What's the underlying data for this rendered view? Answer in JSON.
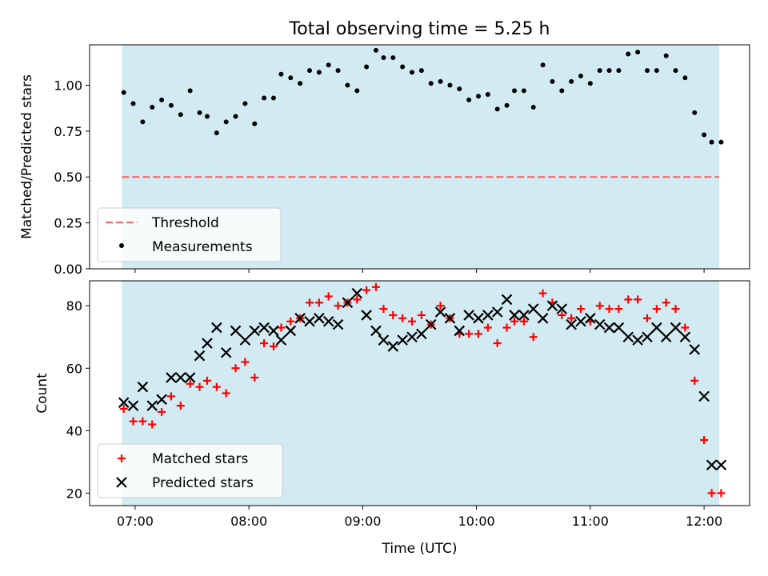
{
  "chart_data": [
    {
      "type": "scatter",
      "title": "Total observing time = 5.25 h",
      "xlabel": "",
      "ylabel": "Matched/Predicted stars",
      "xlim": [
        "06:36",
        "12:24"
      ],
      "ylim": [
        0.0,
        1.22
      ],
      "y_ticks": [
        "0.00",
        "0.25",
        "0.50",
        "0.75",
        "1.00"
      ],
      "x_ticks": [
        "07:00",
        "08:00",
        "09:00",
        "10:00",
        "11:00",
        "12:00"
      ],
      "x_tick_labels_shown": false,
      "shaded_span": {
        "start": "06:53",
        "end": "12:08",
        "color": "#add8e6"
      },
      "grid": false,
      "legend_position": "lower-left",
      "series": [
        {
          "name": "Threshold",
          "kind": "hline",
          "value": 0.5,
          "color": "#f07070",
          "style": "dashed",
          "x_range": [
            "06:53",
            "12:08"
          ]
        },
        {
          "name": "Measurements",
          "kind": "points",
          "marker": "dot",
          "color": "#000000",
          "x": [
            "06:54",
            "06:59",
            "07:04",
            "07:09",
            "07:14",
            "07:19",
            "07:24",
            "07:29",
            "07:34",
            "07:38",
            "07:43",
            "07:48",
            "07:53",
            "07:58",
            "08:03",
            "08:08",
            "08:13",
            "08:17",
            "08:22",
            "08:27",
            "08:32",
            "08:37",
            "08:42",
            "08:47",
            "08:52",
            "08:57",
            "09:02",
            "09:07",
            "09:11",
            "09:16",
            "09:21",
            "09:26",
            "09:31",
            "09:36",
            "09:41",
            "09:46",
            "09:51",
            "09:56",
            "10:01",
            "10:06",
            "10:11",
            "10:16",
            "10:20",
            "10:25",
            "10:30",
            "10:35",
            "10:40",
            "10:45",
            "10:50",
            "10:55",
            "11:00",
            "11:05",
            "11:10",
            "11:15",
            "11:20",
            "11:25",
            "11:30",
            "11:35",
            "11:40",
            "11:45",
            "11:50",
            "11:55",
            "12:00",
            "12:04",
            "12:09"
          ],
          "y": [
            0.96,
            0.9,
            0.8,
            0.88,
            0.92,
            0.89,
            0.84,
            0.97,
            0.85,
            0.83,
            0.74,
            0.8,
            0.83,
            0.9,
            0.79,
            0.93,
            0.93,
            1.06,
            1.04,
            1.01,
            1.08,
            1.07,
            1.11,
            1.08,
            1.0,
            0.97,
            1.1,
            1.19,
            1.15,
            1.15,
            1.1,
            1.07,
            1.08,
            1.01,
            1.02,
            1.0,
            0.98,
            0.92,
            0.94,
            0.95,
            0.87,
            0.89,
            0.97,
            0.97,
            0.88,
            1.11,
            1.02,
            0.97,
            1.02,
            1.05,
            1.01,
            1.08,
            1.08,
            1.08,
            1.17,
            1.18,
            1.08,
            1.08,
            1.16,
            1.08,
            1.04,
            0.85,
            0.73,
            0.69,
            0.69
          ]
        }
      ]
    },
    {
      "type": "scatter",
      "title": "",
      "xlabel": "Time (UTC)",
      "ylabel": "Count",
      "xlim": [
        "06:36",
        "12:24"
      ],
      "ylim": [
        16,
        88
      ],
      "y_ticks": [
        "20",
        "40",
        "60",
        "80"
      ],
      "x_ticks": [
        "07:00",
        "08:00",
        "09:00",
        "10:00",
        "11:00",
        "12:00"
      ],
      "shaded_span": {
        "start": "06:53",
        "end": "12:08",
        "color": "#add8e6"
      },
      "grid": false,
      "legend_position": "lower-left",
      "series": [
        {
          "name": "Matched stars",
          "marker": "plus",
          "color": "#ff0000",
          "x": [
            "06:54",
            "06:59",
            "07:04",
            "07:09",
            "07:14",
            "07:19",
            "07:24",
            "07:29",
            "07:34",
            "07:38",
            "07:43",
            "07:48",
            "07:53",
            "07:58",
            "08:03",
            "08:08",
            "08:13",
            "08:17",
            "08:22",
            "08:27",
            "08:32",
            "08:37",
            "08:42",
            "08:47",
            "08:52",
            "08:57",
            "09:02",
            "09:07",
            "09:11",
            "09:16",
            "09:21",
            "09:26",
            "09:31",
            "09:36",
            "09:41",
            "09:46",
            "09:51",
            "09:56",
            "10:01",
            "10:06",
            "10:11",
            "10:16",
            "10:20",
            "10:25",
            "10:30",
            "10:35",
            "10:40",
            "10:45",
            "10:50",
            "10:55",
            "11:00",
            "11:05",
            "11:10",
            "11:15",
            "11:20",
            "11:25",
            "11:30",
            "11:35",
            "11:40",
            "11:45",
            "11:50",
            "11:55",
            "12:00",
            "12:04",
            "12:09"
          ],
          "y": [
            47,
            43,
            43,
            42,
            46,
            51,
            48,
            55,
            54,
            56,
            54,
            52,
            60,
            62,
            57,
            68,
            67,
            73,
            75,
            76,
            81,
            81,
            83,
            80,
            81,
            82,
            85,
            86,
            79,
            77,
            76,
            75,
            77,
            74,
            80,
            76,
            71,
            71,
            71,
            73,
            68,
            73,
            75,
            75,
            70,
            84,
            81,
            77,
            76,
            79,
            75,
            80,
            79,
            79,
            82,
            82,
            76,
            79,
            81,
            79,
            73,
            56,
            37,
            20,
            20
          ]
        },
        {
          "name": "Predicted stars",
          "marker": "x",
          "color": "#000000",
          "x": [
            "06:54",
            "06:59",
            "07:04",
            "07:09",
            "07:14",
            "07:19",
            "07:24",
            "07:29",
            "07:34",
            "07:38",
            "07:43",
            "07:48",
            "07:53",
            "07:58",
            "08:03",
            "08:08",
            "08:13",
            "08:17",
            "08:22",
            "08:27",
            "08:32",
            "08:37",
            "08:42",
            "08:47",
            "08:52",
            "08:57",
            "09:02",
            "09:07",
            "09:11",
            "09:16",
            "09:21",
            "09:26",
            "09:31",
            "09:36",
            "09:41",
            "09:46",
            "09:51",
            "09:56",
            "10:01",
            "10:06",
            "10:11",
            "10:16",
            "10:20",
            "10:25",
            "10:30",
            "10:35",
            "10:40",
            "10:45",
            "10:50",
            "10:55",
            "11:00",
            "11:05",
            "11:10",
            "11:15",
            "11:20",
            "11:25",
            "11:30",
            "11:35",
            "11:40",
            "11:45",
            "11:50",
            "11:55",
            "12:00",
            "12:04",
            "12:09"
          ],
          "y": [
            49,
            48,
            54,
            48,
            50,
            57,
            57,
            57,
            64,
            68,
            73,
            65,
            72,
            69,
            72,
            73,
            72,
            69,
            72,
            76,
            75,
            76,
            75,
            74,
            81,
            84,
            77,
            72,
            69,
            67,
            69,
            70,
            71,
            74,
            78,
            76,
            72,
            77,
            76,
            77,
            78,
            82,
            77,
            77,
            79,
            76,
            80,
            79,
            74,
            75,
            76,
            74,
            73,
            73,
            70,
            69,
            70,
            73,
            70,
            73,
            70,
            66,
            51,
            29,
            29
          ]
        }
      ]
    }
  ]
}
